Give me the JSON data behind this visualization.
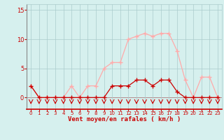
{
  "x": [
    0,
    1,
    2,
    3,
    4,
    5,
    6,
    7,
    8,
    9,
    10,
    11,
    12,
    13,
    14,
    15,
    16,
    17,
    18,
    19,
    20,
    21,
    22,
    23
  ],
  "wind_mean": [
    2,
    0,
    0,
    0,
    0,
    0,
    0,
    0,
    0,
    0,
    2,
    2,
    2,
    3,
    3,
    2,
    3,
    3,
    1,
    0,
    0,
    0,
    0,
    0
  ],
  "wind_gust": [
    2,
    0,
    0,
    0,
    0,
    2,
    0,
    2,
    2,
    5,
    6,
    6,
    10,
    10.5,
    11,
    10.5,
    11,
    11,
    8,
    3,
    0,
    3.5,
    3.5,
    0
  ],
  "color_mean": "#cc0000",
  "color_gust": "#ffaaaa",
  "color_arrow": "#cc0000",
  "bg_color": "#d6f0ee",
  "grid_color": "#aacccc",
  "xlabel": "Vent moyen/en rafales ( km/h )",
  "ylim": [
    -2.0,
    16.0
  ],
  "xlim": [
    -0.5,
    23.5
  ],
  "yticks": [
    0,
    5,
    10,
    15
  ],
  "xticks": [
    0,
    1,
    2,
    3,
    4,
    5,
    6,
    7,
    8,
    9,
    10,
    11,
    12,
    13,
    14,
    15,
    16,
    17,
    18,
    19,
    20,
    21,
    22,
    23
  ],
  "figsize": [
    3.2,
    2.0
  ],
  "dpi": 100
}
